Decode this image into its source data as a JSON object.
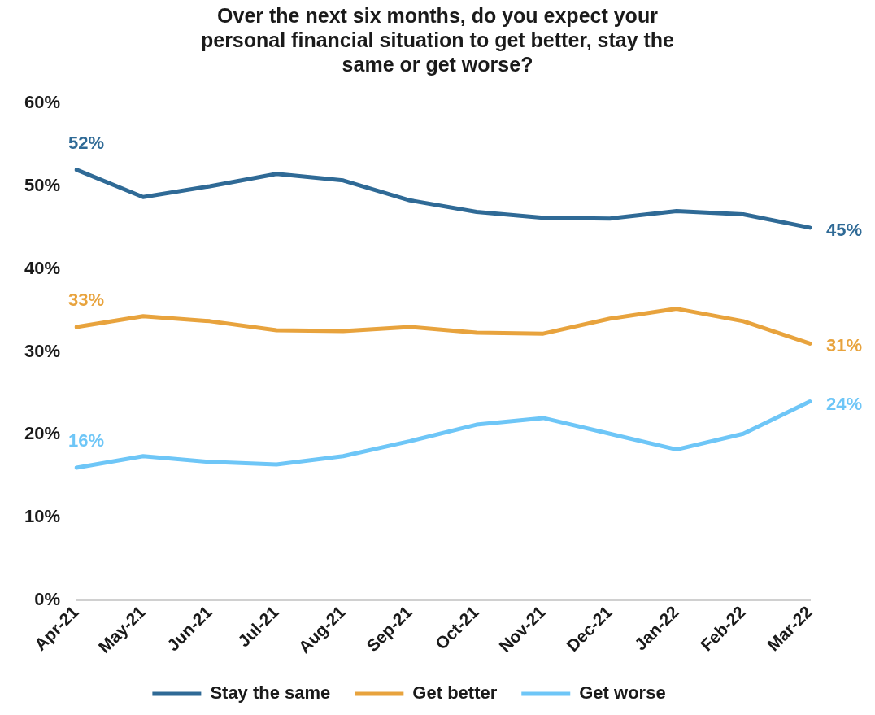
{
  "chart_data": {
    "type": "line",
    "title": "Over the next six months, do you expect your personal financial situation to get better, stay the same or get worse?",
    "categories": [
      "Apr-21",
      "May-21",
      "Jun-21",
      "Jul-21",
      "Aug-21",
      "Sep-21",
      "Oct-21",
      "Nov-21",
      "Dec-21",
      "Jan-22",
      "Feb-22",
      "Mar-22"
    ],
    "series": [
      {
        "name": "Stay the same",
        "color": "#2f6a96",
        "values": [
          52,
          48.7,
          50.0,
          51.5,
          50.7,
          48.3,
          46.9,
          46.2,
          46.1,
          47.0,
          46.6,
          45
        ],
        "value_labels": [
          "52%",
          null,
          null,
          null,
          null,
          null,
          null,
          null,
          null,
          null,
          null,
          "45%"
        ]
      },
      {
        "name": "Get better",
        "color": "#e8a33d",
        "values": [
          33,
          34.3,
          33.7,
          32.6,
          32.5,
          33.0,
          32.3,
          32.2,
          34.0,
          35.2,
          33.7,
          31
        ],
        "value_labels": [
          "33%",
          null,
          null,
          null,
          null,
          null,
          null,
          null,
          null,
          null,
          null,
          "31%"
        ]
      },
      {
        "name": "Get worse",
        "color": "#6ec6f7",
        "values": [
          16,
          17.4,
          16.7,
          16.4,
          17.4,
          19.2,
          21.2,
          22.0,
          20.1,
          18.2,
          20.1,
          24
        ],
        "value_labels": [
          "16%",
          null,
          null,
          null,
          null,
          null,
          null,
          null,
          null,
          null,
          null,
          "24%"
        ]
      }
    ],
    "ylim": [
      0,
      60
    ],
    "yticks": [
      {
        "value": 0,
        "label": "0%"
      },
      {
        "value": 10,
        "label": "10%"
      },
      {
        "value": 20,
        "label": "20%"
      },
      {
        "value": 30,
        "label": "30%"
      },
      {
        "value": 40,
        "label": "40%"
      },
      {
        "value": 50,
        "label": "50%"
      },
      {
        "value": 60,
        "label": "60%"
      }
    ],
    "grid": false,
    "legend": "bottom",
    "marker": "none",
    "line_style": "solid"
  }
}
